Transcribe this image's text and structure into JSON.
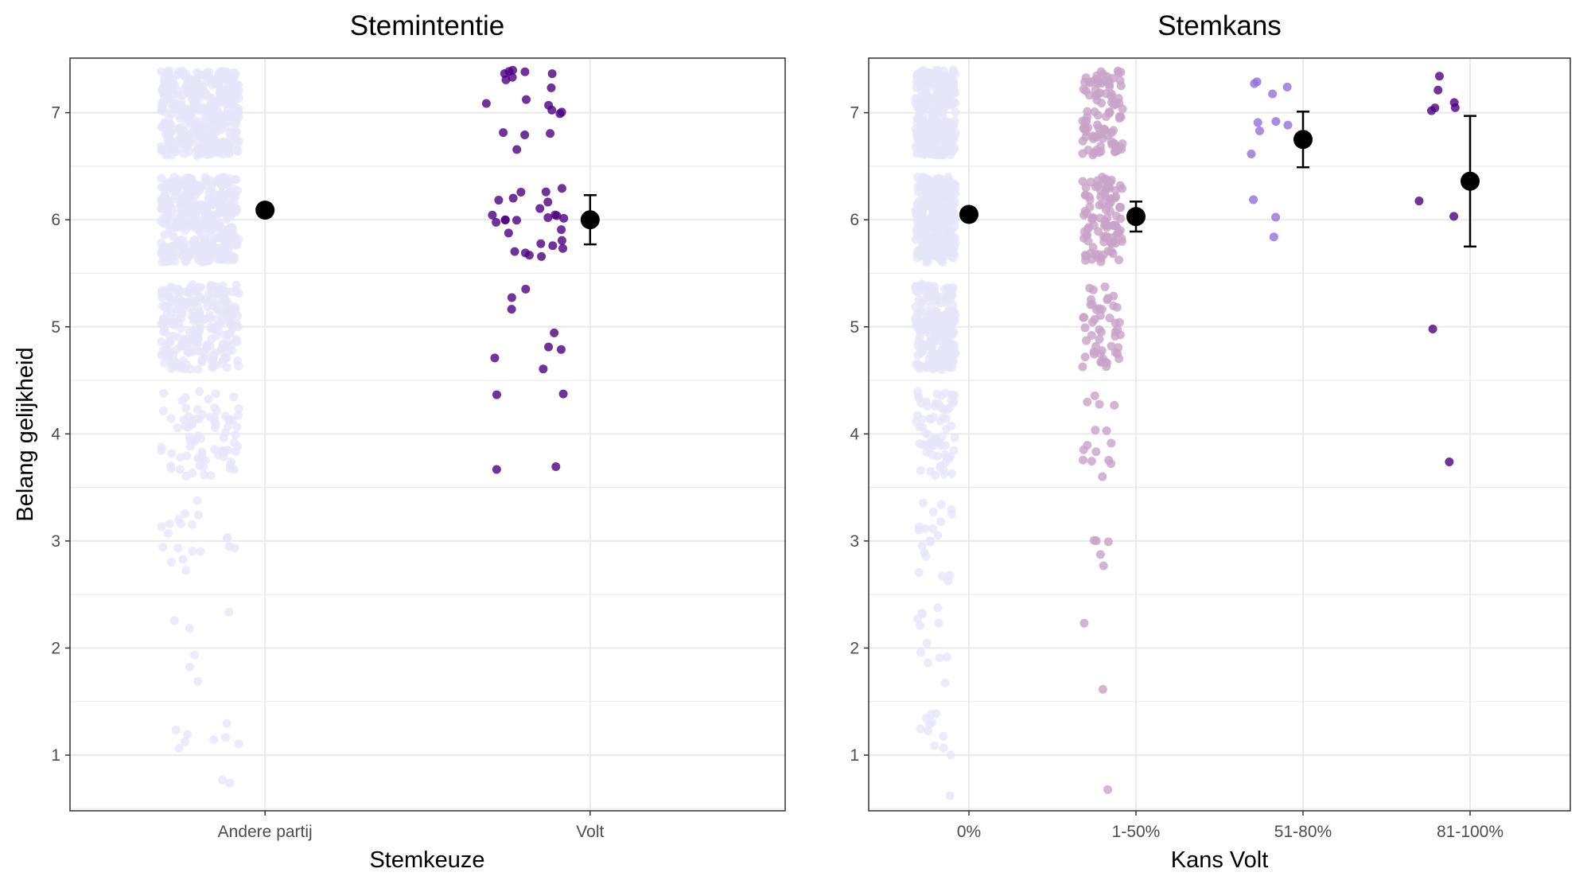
{
  "chart_data": [
    {
      "type": "scatter",
      "title": "Stemintentie",
      "xlabel": "Stemkeuze",
      "ylabel": "Belang gelijkheid",
      "ylim": [
        0.48,
        7.51
      ],
      "yticks": [
        "1",
        "2",
        "3",
        "4",
        "5",
        "6",
        "7"
      ],
      "grid": true,
      "categories": [
        "Andere partij",
        "Volt"
      ],
      "colors": [
        "#e6e6fa",
        "#4b0082"
      ],
      "point_counts_by_level": [
        {
          "1": 10,
          "2": 6,
          "3": 20,
          "4": 80,
          "5": 250,
          "6": 400,
          "7": 400
        },
        {
          "1": 0,
          "2": 0,
          "3": 0,
          "4": 4,
          "5": 8,
          "6": 26,
          "7": 18
        }
      ],
      "means": [
        6.09,
        6.0
      ],
      "error_low": [
        6.06,
        5.77
      ],
      "error_high": [
        6.12,
        6.23
      ]
    },
    {
      "type": "scatter",
      "title": "Stemkans",
      "xlabel": "Kans Volt",
      "ylabel": "",
      "ylim": [
        0.48,
        7.51
      ],
      "yticks": [
        "1",
        "2",
        "3",
        "4",
        "5",
        "6",
        "7"
      ],
      "grid": true,
      "categories": [
        "0%",
        "1-50%",
        "51-80%",
        "81-100%"
      ],
      "colors": [
        "#e6e6fa",
        "#c8a2c8",
        "#9370db",
        "#4b0082"
      ],
      "point_counts_by_level": [
        {
          "1": 12,
          "2": 12,
          "3": 20,
          "4": 70,
          "5": 200,
          "6": 300,
          "7": 300
        },
        {
          "1": 1,
          "2": 2,
          "3": 5,
          "4": 15,
          "5": 50,
          "6": 100,
          "7": 100
        },
        {
          "1": 0,
          "2": 0,
          "3": 0,
          "4": 0,
          "5": 0,
          "6": 3,
          "7": 9
        },
        {
          "1": 0,
          "2": 0,
          "3": 0,
          "4": 1,
          "5": 1,
          "6": 2,
          "7": 6
        }
      ],
      "means": [
        6.05,
        6.03,
        6.75,
        6.36
      ],
      "error_low": [
        6.03,
        5.89,
        6.49,
        5.75
      ],
      "error_high": [
        6.07,
        6.17,
        7.01,
        6.97
      ]
    }
  ]
}
